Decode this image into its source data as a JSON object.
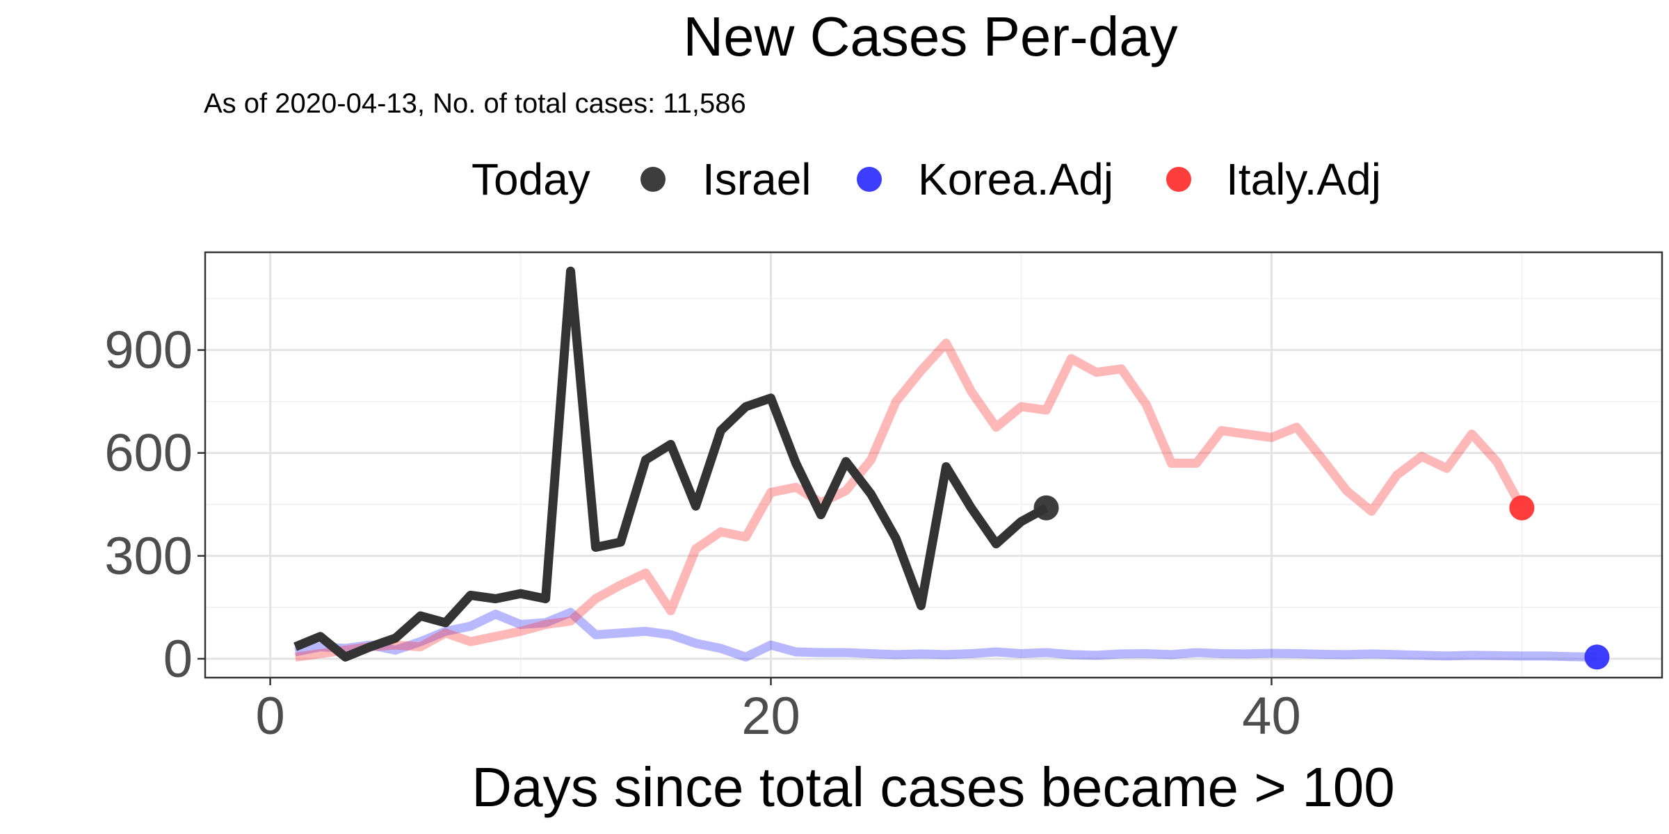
{
  "chart_data": {
    "type": "line",
    "title": "New Cases Per-day",
    "subtitle": "As of 2020-04-13, No. of total cases: 11,586",
    "xlabel": "Days since total cases became > 100",
    "ylabel": "",
    "xlim": [
      -2.6,
      55.6
    ],
    "ylim": [
      -55,
      1185
    ],
    "x_ticks": [
      0,
      20,
      40
    ],
    "x_minor_ticks": [
      10,
      30,
      50
    ],
    "y_ticks": [
      0,
      300,
      600,
      900
    ],
    "y_minor_ticks": [
      150,
      450,
      750,
      1050
    ],
    "grid": true,
    "legend": {
      "title": "Today",
      "position": "top"
    },
    "series": [
      {
        "name": "Israel",
        "color": "#333333",
        "opacity": 1.0,
        "marker_at_last_point": true,
        "x": [
          1,
          2,
          3,
          4,
          5,
          6,
          7,
          8,
          9,
          10,
          11,
          12,
          13,
          14,
          15,
          16,
          17,
          18,
          19,
          20,
          21,
          22,
          23,
          24,
          25,
          26,
          27,
          28,
          29,
          30,
          31
        ],
        "values": [
          35,
          65,
          5,
          35,
          60,
          125,
          105,
          185,
          175,
          190,
          175,
          1130,
          325,
          340,
          580,
          625,
          445,
          665,
          735,
          760,
          570,
          420,
          575,
          480,
          350,
          155,
          560,
          440,
          335,
          400,
          440
        ]
      },
      {
        "name": "Korea.Adj",
        "color": "#3333ff",
        "opacity": 0.35,
        "marker_at_last_point": true,
        "x": [
          1,
          2,
          3,
          4,
          5,
          6,
          7,
          8,
          9,
          10,
          11,
          12,
          13,
          14,
          15,
          16,
          17,
          18,
          19,
          20,
          21,
          22,
          23,
          24,
          25,
          26,
          27,
          28,
          29,
          30,
          31,
          32,
          33,
          34,
          35,
          36,
          37,
          38,
          39,
          40,
          41,
          42,
          43,
          44,
          45,
          46,
          47,
          48,
          49,
          50,
          51,
          52,
          53
        ],
        "values": [
          20,
          35,
          30,
          40,
          25,
          50,
          80,
          95,
          130,
          100,
          105,
          135,
          70,
          75,
          80,
          70,
          45,
          30,
          5,
          40,
          20,
          18,
          18,
          15,
          12,
          14,
          12,
          15,
          20,
          15,
          18,
          12,
          10,
          14,
          15,
          12,
          18,
          15,
          14,
          16,
          15,
          13,
          12,
          14,
          12,
          10,
          8,
          10,
          9,
          8,
          8,
          6,
          5
        ]
      },
      {
        "name": "Italy.Adj",
        "color": "#ff3333",
        "opacity": 0.35,
        "marker_at_last_point": true,
        "x": [
          1,
          2,
          3,
          4,
          5,
          6,
          7,
          8,
          9,
          10,
          11,
          12,
          13,
          14,
          15,
          16,
          17,
          18,
          19,
          20,
          21,
          22,
          23,
          24,
          25,
          26,
          27,
          28,
          29,
          30,
          31,
          32,
          33,
          34,
          35,
          36,
          37,
          38,
          39,
          40,
          41,
          42,
          43,
          44,
          45,
          46,
          47,
          48,
          49,
          50
        ],
        "values": [
          5,
          15,
          25,
          35,
          40,
          35,
          75,
          50,
          65,
          80,
          100,
          110,
          175,
          215,
          250,
          140,
          320,
          370,
          355,
          485,
          500,
          455,
          490,
          580,
          750,
          840,
          920,
          780,
          675,
          735,
          725,
          875,
          835,
          845,
          740,
          570,
          570,
          665,
          655,
          645,
          675,
          585,
          490,
          430,
          535,
          590,
          555,
          655,
          575,
          440
        ]
      }
    ]
  }
}
